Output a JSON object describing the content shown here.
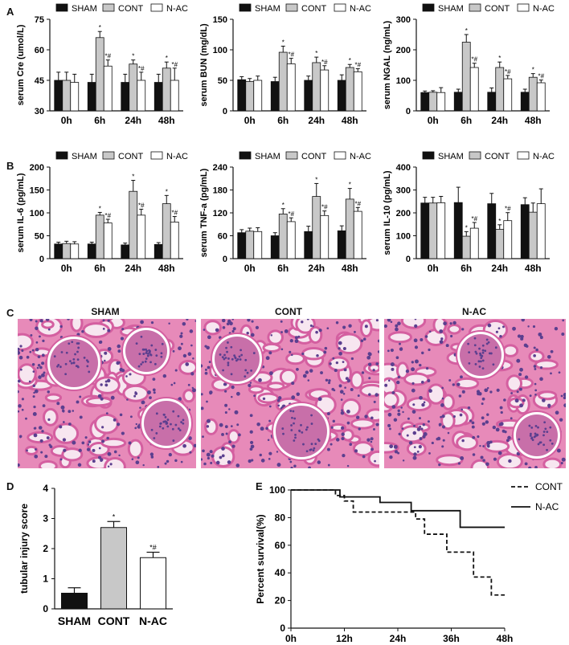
{
  "panel_letters": {
    "a": "A",
    "b": "B",
    "c": "C",
    "d": "D",
    "e": "E"
  },
  "histology": {
    "labels": [
      "SHAM",
      "CONT",
      "N-AC"
    ],
    "colors": {
      "background": "#e78ab9",
      "cytoplasm": "#d45fa0",
      "nuclei": "#5b3f8f",
      "lumen": "#f7e6f0",
      "glomerulus": "#c86fa9"
    }
  },
  "colors": {
    "SHAM": "#111111",
    "CONT": "#c8c8c8",
    "N-AC": "#ffffff",
    "stroke": "#111111"
  },
  "chart_data": [
    {
      "type": "bar",
      "panel": "A",
      "ylabel": "serum Cre (umol/L)",
      "ylim": [
        30,
        75
      ],
      "yticks": [
        30,
        45,
        60,
        75
      ],
      "categories": [
        "0h",
        "6h",
        "24h",
        "48h"
      ],
      "series": [
        {
          "name": "SHAM",
          "values": [
            45,
            44,
            44,
            44
          ],
          "errors": [
            4,
            4,
            4,
            4
          ]
        },
        {
          "name": "CONT",
          "values": [
            45,
            66,
            53,
            51
          ],
          "errors": [
            4,
            3,
            2,
            3
          ]
        },
        {
          "name": "N-AC",
          "values": [
            44,
            52,
            45,
            45
          ],
          "errors": [
            4,
            3,
            4,
            6
          ]
        }
      ],
      "annotations": [
        [
          "",
          "",
          "",
          ""
        ],
        [
          "",
          "*",
          "*",
          "*"
        ],
        [
          "",
          "*#",
          "*#",
          "*#"
        ]
      ],
      "legend": [
        "SHAM",
        "CONT",
        "N-AC"
      ]
    },
    {
      "type": "bar",
      "panel": "A",
      "ylabel": "serum BUN (mg/dL)",
      "ylim": [
        0,
        150
      ],
      "yticks": [
        0,
        50,
        100,
        150
      ],
      "categories": [
        "0h",
        "6h",
        "24h",
        "48h"
      ],
      "series": [
        {
          "name": "SHAM",
          "values": [
            51,
            48,
            50,
            50
          ],
          "errors": [
            5,
            7,
            7,
            9
          ]
        },
        {
          "name": "CONT",
          "values": [
            48,
            96,
            79,
            71
          ],
          "errors": [
            5,
            10,
            9,
            5
          ]
        },
        {
          "name": "N-AC",
          "values": [
            50,
            77,
            67,
            64
          ],
          "errors": [
            7,
            9,
            7,
            5
          ]
        }
      ],
      "annotations": [
        [
          "",
          "",
          "",
          ""
        ],
        [
          "",
          "*",
          "*",
          "*"
        ],
        [
          "",
          "*#",
          "*#",
          "*#"
        ]
      ],
      "legend": [
        "SHAM",
        "CONT",
        "N-AC"
      ]
    },
    {
      "type": "bar",
      "panel": "A",
      "ylabel": "serum NGAL (ng/mL)",
      "ylim": [
        0,
        300
      ],
      "yticks": [
        0,
        100,
        200,
        300
      ],
      "categories": [
        "0h",
        "6h",
        "24h",
        "48h"
      ],
      "series": [
        {
          "name": "SHAM",
          "values": [
            60,
            61,
            61,
            61
          ],
          "errors": [
            5,
            10,
            14,
            10
          ]
        },
        {
          "name": "CONT",
          "values": [
            61,
            225,
            142,
            110
          ],
          "errors": [
            5,
            25,
            18,
            12
          ]
        },
        {
          "name": "N-AC",
          "values": [
            60,
            142,
            105,
            92
          ],
          "errors": [
            16,
            14,
            11,
            9
          ]
        }
      ],
      "annotations": [
        [
          "",
          "",
          "",
          ""
        ],
        [
          "",
          "*",
          "*",
          "*"
        ],
        [
          "",
          "*#",
          "*#",
          "*#"
        ]
      ],
      "legend": [
        "SHAM",
        "CONT",
        "N-AC"
      ]
    },
    {
      "type": "bar",
      "panel": "B",
      "ylabel": "serum IL-6 (pg/mL)",
      "ylim": [
        0,
        200
      ],
      "yticks": [
        0,
        50,
        100,
        150,
        200
      ],
      "categories": [
        "0h",
        "6h",
        "24h",
        "48h"
      ],
      "series": [
        {
          "name": "SHAM",
          "values": [
            32,
            32,
            30,
            31
          ],
          "errors": [
            4,
            4,
            4,
            4
          ]
        },
        {
          "name": "CONT",
          "values": [
            33,
            95,
            147,
            120
          ],
          "errors": [
            5,
            6,
            24,
            18
          ]
        },
        {
          "name": "N-AC",
          "values": [
            32,
            78,
            95,
            80
          ],
          "errors": [
            5,
            8,
            13,
            12
          ]
        }
      ],
      "annotations": [
        [
          "",
          "",
          "",
          ""
        ],
        [
          "",
          "*",
          "*",
          "*"
        ],
        [
          "",
          "*#",
          "*#",
          "*#"
        ]
      ],
      "legend": [
        "SHAM",
        "CONT",
        "N-AC"
      ]
    },
    {
      "type": "bar",
      "panel": "B",
      "ylabel": "serum TNF-a (pg/mL)",
      "ylim": [
        0,
        240
      ],
      "yticks": [
        0,
        60,
        120,
        180,
        240
      ],
      "categories": [
        "0h",
        "6h",
        "24h",
        "48h"
      ],
      "series": [
        {
          "name": "SHAM",
          "values": [
            68,
            60,
            71,
            73
          ],
          "errors": [
            8,
            8,
            14,
            13
          ]
        },
        {
          "name": "CONT",
          "values": [
            72,
            117,
            163,
            156
          ],
          "errors": [
            8,
            14,
            34,
            28
          ]
        },
        {
          "name": "N-AC",
          "values": [
            71,
            97,
            113,
            124
          ],
          "errors": [
            10,
            10,
            12,
            10
          ]
        }
      ],
      "annotations": [
        [
          "",
          "",
          "",
          ""
        ],
        [
          "",
          "*",
          "*",
          "*"
        ],
        [
          "",
          "*#",
          "*#",
          "*#"
        ]
      ],
      "legend": [
        "SHAM",
        "CONT",
        "N-AC"
      ]
    },
    {
      "type": "bar",
      "panel": "B",
      "ylabel": "serum IL-10 (pg/mL)",
      "ylim": [
        0,
        400
      ],
      "yticks": [
        0,
        100,
        200,
        300,
        400
      ],
      "categories": [
        "0h",
        "6h",
        "24h",
        "48h"
      ],
      "series": [
        {
          "name": "SHAM",
          "values": [
            243,
            245,
            240,
            236
          ],
          "errors": [
            25,
            67,
            45,
            30
          ]
        },
        {
          "name": "CONT",
          "values": [
            243,
            98,
            128,
            203
          ],
          "errors": [
            25,
            20,
            20,
            40
          ]
        },
        {
          "name": "N-AC",
          "values": [
            244,
            133,
            166,
            240
          ],
          "errors": [
            28,
            25,
            35,
            65
          ]
        }
      ],
      "annotations": [
        [
          "",
          "",
          "",
          ""
        ],
        [
          "",
          "*",
          "*",
          ""
        ],
        [
          "",
          "*#",
          "*#",
          ""
        ]
      ],
      "legend": [
        "SHAM",
        "CONT",
        "N-AC"
      ]
    },
    {
      "type": "bar",
      "panel": "D",
      "ylabel": "tubular injury score",
      "ylim": [
        0,
        4
      ],
      "yticks": [
        0,
        1,
        2,
        3,
        4
      ],
      "categories": [
        "SHAM",
        "CONT",
        "N-AC"
      ],
      "values": [
        0.52,
        2.7,
        1.7
      ],
      "errors": [
        0.18,
        0.2,
        0.18
      ],
      "annotations": [
        "",
        "*",
        "*#"
      ]
    },
    {
      "type": "line",
      "panel": "E",
      "subtype": "kaplan-meier",
      "ylabel": "Percent survival(%)",
      "ylim": [
        0,
        100
      ],
      "yticks": [
        0,
        20,
        40,
        60,
        80,
        100
      ],
      "xticks": [
        "0h",
        "12h",
        "24h",
        "36h",
        "48h"
      ],
      "xlim": [
        0,
        48
      ],
      "series": [
        {
          "name": "CONT",
          "style": "dashed",
          "steps": [
            [
              0,
              100
            ],
            [
              10,
              96
            ],
            [
              12,
              92
            ],
            [
              14,
              84
            ],
            [
              26,
              84
            ],
            [
              28,
              79
            ],
            [
              30,
              68
            ],
            [
              33,
              68
            ],
            [
              35,
              55
            ],
            [
              39,
              55
            ],
            [
              41,
              37
            ],
            [
              44,
              37
            ],
            [
              45,
              24
            ],
            [
              48,
              24
            ]
          ]
        },
        {
          "name": "N-AC",
          "style": "solid",
          "steps": [
            [
              0,
              100
            ],
            [
              10,
              100
            ],
            [
              11,
              95
            ],
            [
              18,
              95
            ],
            [
              20,
              91
            ],
            [
              26,
              91
            ],
            [
              27,
              85
            ],
            [
              37,
              85
            ],
            [
              38,
              73
            ],
            [
              48,
              73
            ]
          ]
        }
      ],
      "legend": [
        "CONT",
        "N-AC"
      ]
    }
  ]
}
